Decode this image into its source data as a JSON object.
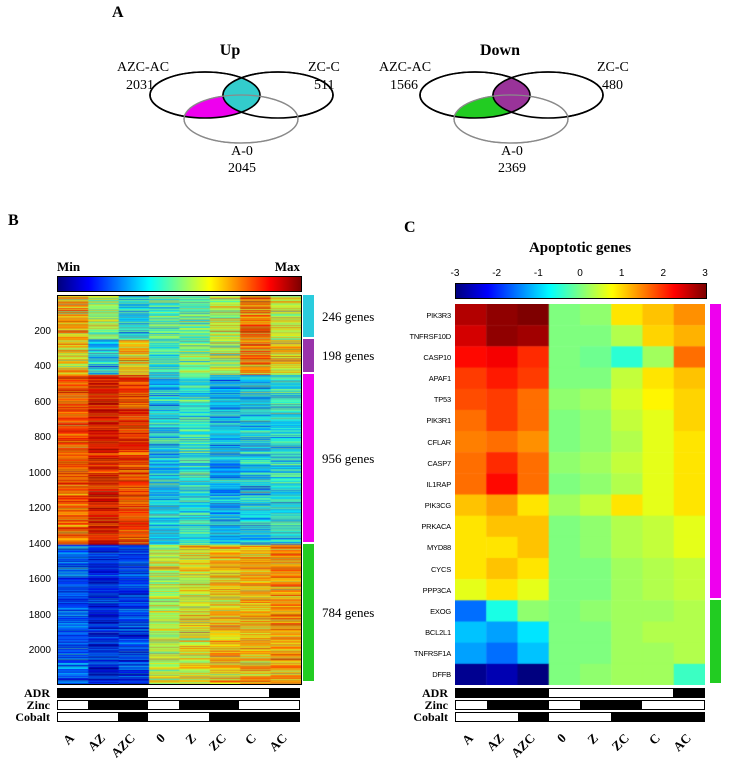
{
  "figure": {
    "panel_a_label": "A",
    "panel_b_label": "B",
    "panel_c_label": "C"
  },
  "annotations": {
    "rows": [
      "ADR",
      "Zinc",
      "Cobalt"
    ],
    "columns": [
      "A",
      "AZ",
      "AZC",
      "0",
      "Z",
      "ZC",
      "C",
      "AC"
    ],
    "matrix": [
      [
        1,
        1,
        1,
        0,
        0,
        0,
        0,
        1
      ],
      [
        0,
        1,
        1,
        0,
        1,
        1,
        0,
        0
      ],
      [
        0,
        0,
        1,
        0,
        0,
        1,
        1,
        1
      ]
    ],
    "on_color": "#000000",
    "off_color": "#ffffff"
  },
  "chart_data": [
    {
      "id": "venn_up",
      "type": "venn",
      "title": "Up",
      "sets": [
        {
          "label": "AZC-AC",
          "value": 2031
        },
        {
          "label": "ZC-C",
          "value": 511
        },
        {
          "label": "A-0",
          "value": 2045
        }
      ],
      "overlap_colors": {
        "left_bottom": "#EE00EE",
        "top": "#33CCCC"
      }
    },
    {
      "id": "venn_down",
      "type": "venn",
      "title": "Down",
      "sets": [
        {
          "label": "AZC-AC",
          "value": 1566
        },
        {
          "label": "ZC-C",
          "value": 480
        },
        {
          "label": "A-0",
          "value": 2369
        }
      ],
      "overlap_colors": {
        "left_bottom": "#22CC22",
        "top": "#993399"
      }
    },
    {
      "id": "expression_heatmap",
      "type": "heatmap",
      "colormap": "jet",
      "colorbar": {
        "min_label": "Min",
        "max_label": "Max"
      },
      "columns": [
        "A",
        "AZ",
        "AZC",
        "0",
        "Z",
        "ZC",
        "C",
        "AC"
      ],
      "y_ticks": [
        200,
        400,
        600,
        800,
        1000,
        1200,
        1400,
        1600,
        1800,
        2000
      ],
      "total_rows": 2184,
      "value_range": [
        -3,
        3
      ],
      "clusters": [
        {
          "label": "246 genes",
          "count": 246,
          "bar_color": "#2ACCDD",
          "col_means": [
            1.2,
            0.2,
            -0.8,
            -0.3,
            -0.2,
            0.4,
            1.6,
            0.6
          ],
          "noise": 1.0
        },
        {
          "label": "198 genes",
          "count": 198,
          "bar_color": "#9933AA",
          "col_means": [
            0.8,
            -1.0,
            1.0,
            -0.5,
            0.0,
            0.3,
            1.5,
            1.0
          ],
          "noise": 1.0
        },
        {
          "label": "956 genes",
          "count": 956,
          "bar_color": "#EE00EE",
          "col_means": [
            1.8,
            2.3,
            2.0,
            -0.9,
            -0.6,
            -1.1,
            -0.9,
            -0.7
          ],
          "noise": 0.9
        },
        {
          "label": "784 genes",
          "count": 784,
          "bar_color": "#22CC22",
          "col_means": [
            -1.8,
            -2.3,
            -2.0,
            0.4,
            0.7,
            1.0,
            1.1,
            1.3
          ],
          "noise": 0.9
        }
      ]
    },
    {
      "id": "apoptotic_heatmap",
      "type": "heatmap",
      "title": "Apoptotic genes",
      "colormap": "jet",
      "colorbar_ticks": [
        "-3",
        "-2",
        "-1",
        "0",
        "1",
        "2",
        "3"
      ],
      "value_range": [
        -3,
        3
      ],
      "columns": [
        "A",
        "AZ",
        "AZC",
        "0",
        "Z",
        "ZC",
        "C",
        "AC"
      ],
      "genes": [
        "PIK3R3",
        "TNFRSF10D",
        "CASP10",
        "APAF1",
        "TP53",
        "PIK3R1",
        "CFLAR",
        "CASP7",
        "IL1RAP",
        "PIK3CG",
        "PRKACA",
        "MYD88",
        "CYCS",
        "PPP3CA",
        "EXOG",
        "BCL2L1",
        "TNFRSF1A",
        "DFFB"
      ],
      "values": [
        [
          2.7,
          2.9,
          3.0,
          0.0,
          0.1,
          0.9,
          1.1,
          1.4
        ],
        [
          2.5,
          2.9,
          2.8,
          0.0,
          0.0,
          0.3,
          1.0,
          1.2
        ],
        [
          2.2,
          2.3,
          2.0,
          0.0,
          -0.1,
          -0.5,
          0.2,
          1.6
        ],
        [
          1.9,
          2.1,
          1.9,
          0.0,
          0.0,
          0.4,
          0.9,
          1.1
        ],
        [
          1.8,
          1.9,
          1.6,
          0.1,
          0.2,
          0.5,
          0.8,
          1.0
        ],
        [
          1.6,
          1.9,
          1.6,
          0.0,
          0.1,
          0.4,
          0.6,
          1.0
        ],
        [
          1.5,
          1.6,
          1.4,
          0.0,
          0.1,
          0.3,
          0.6,
          0.9
        ],
        [
          1.6,
          2.0,
          1.6,
          0.1,
          0.2,
          0.4,
          0.6,
          0.9
        ],
        [
          1.6,
          2.2,
          1.6,
          0.0,
          0.1,
          0.3,
          0.6,
          0.9
        ],
        [
          1.1,
          1.3,
          0.9,
          0.2,
          0.4,
          0.9,
          0.6,
          0.9
        ],
        [
          0.9,
          1.1,
          1.1,
          0.0,
          0.1,
          0.3,
          0.4,
          0.6
        ],
        [
          0.9,
          0.9,
          1.1,
          0.0,
          0.1,
          0.3,
          0.4,
          0.6
        ],
        [
          0.9,
          1.1,
          0.9,
          0.0,
          0.0,
          0.2,
          0.3,
          0.4
        ],
        [
          0.6,
          0.9,
          0.6,
          0.0,
          0.0,
          0.2,
          0.3,
          0.4
        ],
        [
          -1.6,
          -0.6,
          0.1,
          0.0,
          0.1,
          0.2,
          0.2,
          0.3
        ],
        [
          -1.1,
          -1.3,
          -0.9,
          0.0,
          0.0,
          0.2,
          0.3,
          0.3
        ],
        [
          -1.3,
          -1.6,
          -1.1,
          0.0,
          0.0,
          0.2,
          0.2,
          0.3
        ],
        [
          -2.9,
          -2.7,
          -3.0,
          0.0,
          0.1,
          0.2,
          0.2,
          -0.4
        ]
      ],
      "gene_groups": [
        {
          "count": 14,
          "bar_color": "#EE00EE"
        },
        {
          "count": 4,
          "bar_color": "#22CC22"
        }
      ]
    }
  ]
}
